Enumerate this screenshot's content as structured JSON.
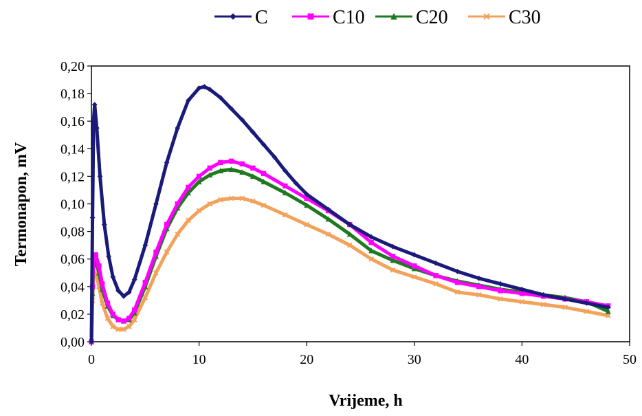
{
  "chart_data": {
    "type": "line",
    "title": "",
    "xlabel": "Vrijeme, h",
    "ylabel": "Termonapon, mV",
    "xlim": [
      0,
      50
    ],
    "ylim": [
      0,
      0.2
    ],
    "x_ticks": [
      "0",
      "10",
      "20",
      "30",
      "40",
      "50"
    ],
    "y_ticks": [
      "0,00",
      "0,02",
      "0,04",
      "0,06",
      "0,08",
      "0,10",
      "0,12",
      "0,14",
      "0,16",
      "0,18",
      "0,20"
    ],
    "grid": false,
    "legend_position": "top",
    "series": [
      {
        "name": "C",
        "color": "#1a1a7a",
        "marker": "diamond",
        "x": [
          0,
          0.1,
          0.2,
          0.3,
          0.5,
          0.8,
          1.2,
          1.6,
          2.0,
          2.5,
          3.0,
          3.5,
          4.0,
          5.0,
          6.0,
          7.0,
          8.0,
          9.0,
          10.0,
          10.5,
          11.0,
          12.0,
          13.0,
          14.0,
          15.0,
          16.0,
          17.0,
          18.0,
          19.0,
          20.0,
          22.0,
          24.0,
          26.0,
          28.0,
          30.0,
          32.0,
          34.0,
          36.0,
          38.0,
          40.0,
          42.0,
          44.0,
          46.0,
          48.0
        ],
        "y": [
          0.0,
          0.09,
          0.16,
          0.172,
          0.155,
          0.12,
          0.085,
          0.062,
          0.047,
          0.037,
          0.033,
          0.036,
          0.045,
          0.07,
          0.1,
          0.13,
          0.155,
          0.175,
          0.184,
          0.185,
          0.183,
          0.177,
          0.169,
          0.161,
          0.152,
          0.143,
          0.134,
          0.124,
          0.115,
          0.107,
          0.096,
          0.085,
          0.076,
          0.069,
          0.063,
          0.057,
          0.051,
          0.046,
          0.042,
          0.038,
          0.034,
          0.031,
          0.028,
          0.025
        ]
      },
      {
        "name": "C10",
        "color": "#ff00ff",
        "marker": "square",
        "x": [
          0,
          0.1,
          0.2,
          0.4,
          0.7,
          1.0,
          1.5,
          2.0,
          2.5,
          3.0,
          3.5,
          4.0,
          5.0,
          6.0,
          7.0,
          8.0,
          9.0,
          10.0,
          11.0,
          12.0,
          13.0,
          14.0,
          15.0,
          16.0,
          18.0,
          20.0,
          22.0,
          24.0,
          26.0,
          28.0,
          30.0,
          32.0,
          34.0,
          36.0,
          38.0,
          40.0,
          42.0,
          44.0,
          46.0,
          48.0
        ],
        "y": [
          0.0,
          0.04,
          0.062,
          0.063,
          0.055,
          0.042,
          0.028,
          0.02,
          0.016,
          0.015,
          0.017,
          0.023,
          0.043,
          0.065,
          0.085,
          0.1,
          0.112,
          0.12,
          0.126,
          0.13,
          0.131,
          0.129,
          0.126,
          0.122,
          0.113,
          0.104,
          0.095,
          0.085,
          0.072,
          0.062,
          0.055,
          0.048,
          0.043,
          0.04,
          0.037,
          0.035,
          0.033,
          0.031,
          0.029,
          0.026
        ]
      },
      {
        "name": "C20",
        "color": "#1e7a1e",
        "marker": "triangle",
        "x": [
          0,
          0.1,
          0.2,
          0.4,
          0.7,
          1.0,
          1.5,
          2.0,
          2.5,
          3.0,
          3.5,
          4.0,
          5.0,
          6.0,
          7.0,
          8.0,
          9.0,
          10.0,
          11.0,
          12.0,
          13.0,
          14.0,
          15.0,
          16.0,
          18.0,
          20.0,
          22.0,
          24.0,
          26.0,
          28.0,
          30.0,
          32.0,
          34.0,
          36.0,
          38.0,
          40.0,
          42.0,
          44.0,
          46.0,
          48.0
        ],
        "y": [
          0.0,
          0.035,
          0.056,
          0.058,
          0.05,
          0.038,
          0.026,
          0.019,
          0.016,
          0.015,
          0.016,
          0.021,
          0.04,
          0.062,
          0.082,
          0.097,
          0.108,
          0.116,
          0.121,
          0.124,
          0.125,
          0.123,
          0.12,
          0.116,
          0.108,
          0.099,
          0.089,
          0.078,
          0.066,
          0.059,
          0.053,
          0.048,
          0.044,
          0.041,
          0.038,
          0.036,
          0.034,
          0.032,
          0.029,
          0.022
        ]
      },
      {
        "name": "C30",
        "color": "#f2a25a",
        "marker": "x",
        "x": [
          0,
          0.1,
          0.2,
          0.4,
          0.7,
          1.0,
          1.5,
          2.0,
          2.5,
          3.0,
          3.5,
          4.0,
          5.0,
          6.0,
          7.0,
          8.0,
          9.0,
          10.0,
          11.0,
          12.0,
          13.0,
          14.0,
          15.0,
          16.0,
          18.0,
          20.0,
          22.0,
          24.0,
          26.0,
          28.0,
          30.0,
          32.0,
          34.0,
          36.0,
          38.0,
          40.0,
          42.0,
          44.0,
          46.0,
          48.0
        ],
        "y": [
          0.0,
          0.03,
          0.048,
          0.05,
          0.04,
          0.028,
          0.017,
          0.011,
          0.009,
          0.009,
          0.011,
          0.016,
          0.032,
          0.05,
          0.065,
          0.078,
          0.088,
          0.095,
          0.1,
          0.103,
          0.104,
          0.104,
          0.102,
          0.099,
          0.092,
          0.085,
          0.078,
          0.07,
          0.06,
          0.052,
          0.047,
          0.042,
          0.036,
          0.034,
          0.031,
          0.029,
          0.027,
          0.025,
          0.022,
          0.019
        ]
      }
    ]
  }
}
